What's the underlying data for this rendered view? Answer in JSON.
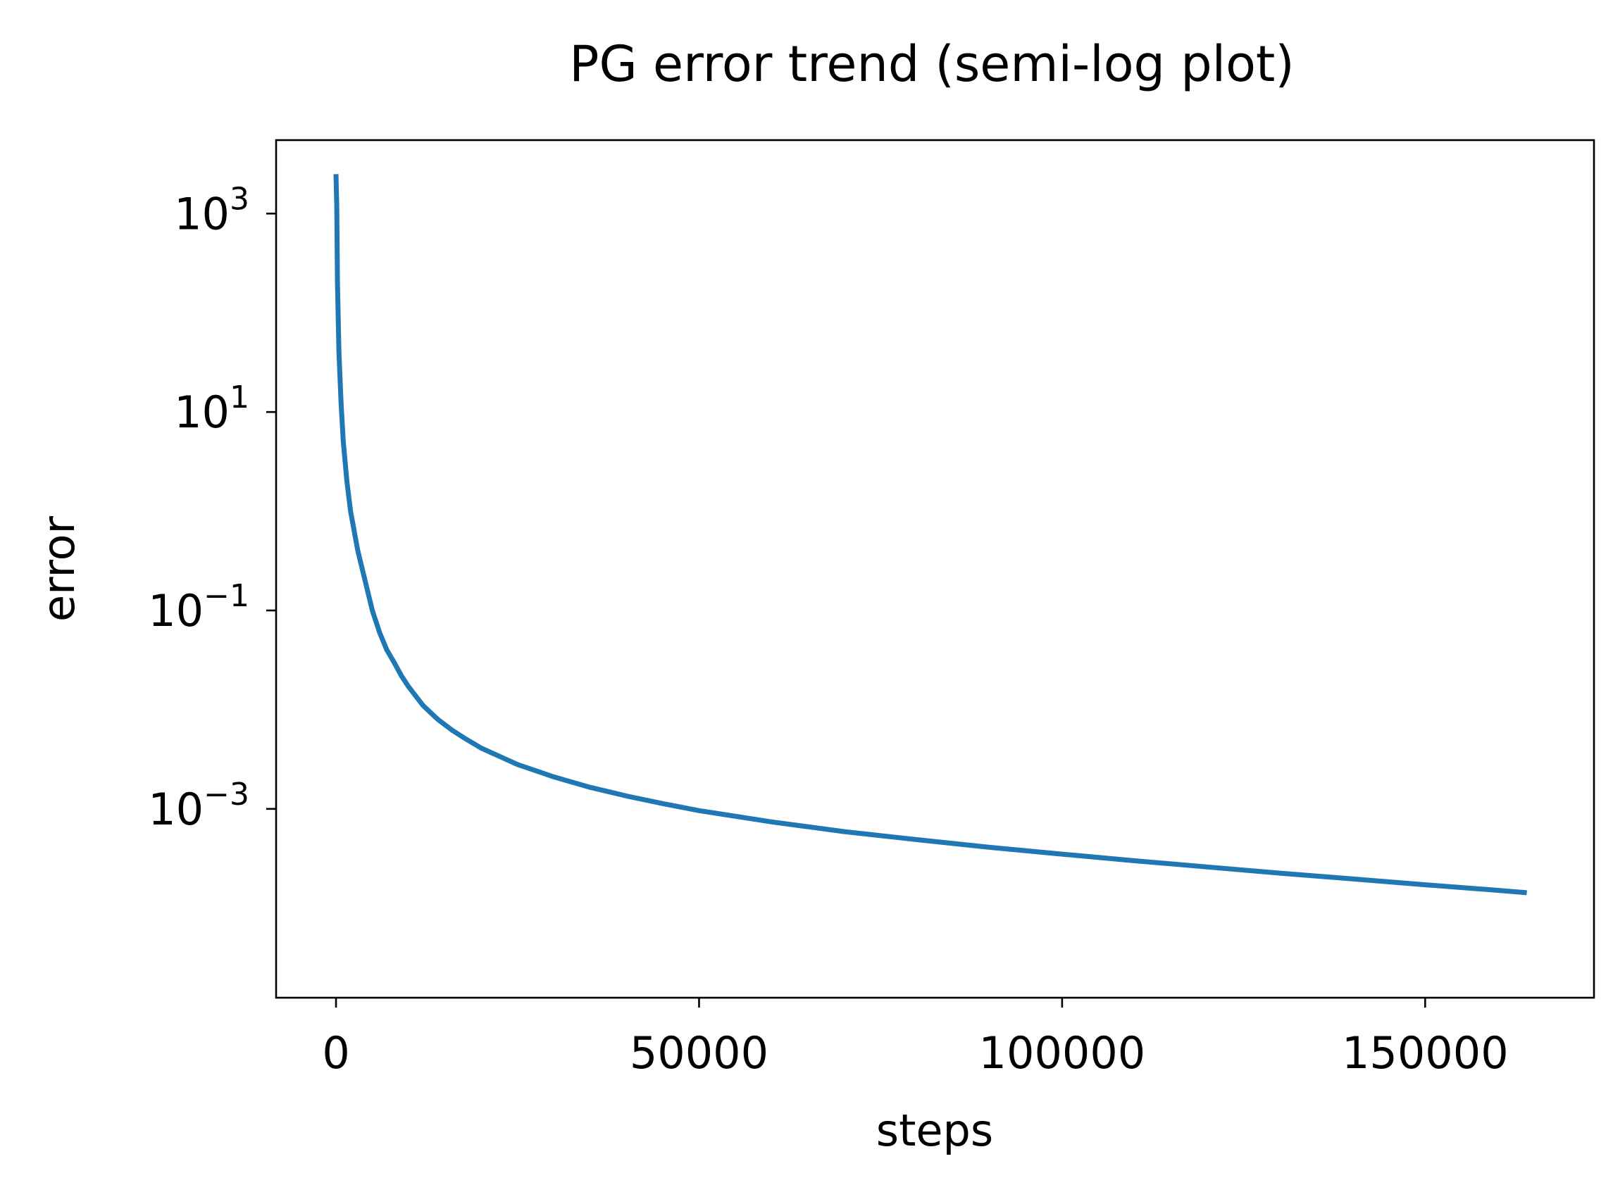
{
  "chart_data": {
    "type": "line",
    "title": "PG error trend (semi-log plot)",
    "xlabel": "steps",
    "ylabel": "error",
    "xscale": "linear",
    "yscale": "log",
    "xlim": [
      -8250,
      173250
    ],
    "ylim": [
      1.25e-05,
      5500
    ],
    "xticks": [
      {
        "value": 0,
        "label": "0"
      },
      {
        "value": 50000,
        "label": "50000"
      },
      {
        "value": 100000,
        "label": "100000"
      },
      {
        "value": 150000,
        "label": "150000"
      }
    ],
    "yticks": [
      {
        "value": 1000,
        "base": "10",
        "exp": "3"
      },
      {
        "value": 10,
        "base": "10",
        "exp": "1"
      },
      {
        "value": 0.1,
        "base": "10",
        "exp": "−1"
      },
      {
        "value": 0.001,
        "base": "10",
        "exp": "−3"
      }
    ],
    "grid": false,
    "legend": "none",
    "series": [
      {
        "color": "#1f77b4",
        "x": [
          0,
          100,
          200,
          400,
          700,
          1000,
          1500,
          2000,
          3000,
          4000,
          5000,
          6000,
          7000,
          8000,
          9000,
          10000,
          12000,
          14000,
          16000,
          18000,
          20000,
          25000,
          30000,
          35000,
          40000,
          45000,
          50000,
          60000,
          70000,
          80000,
          90000,
          100000,
          110000,
          120000,
          130000,
          140000,
          150000,
          160000,
          164000
        ],
        "y": [
          2500,
          1200,
          200,
          40,
          12,
          5,
          2,
          1,
          0.4,
          0.2,
          0.1,
          0.06,
          0.04,
          0.03,
          0.022,
          0.017,
          0.011,
          0.008,
          0.0062,
          0.005,
          0.0041,
          0.0028,
          0.0021,
          0.00165,
          0.00135,
          0.00113,
          0.00096,
          0.00074,
          0.00059,
          0.00049,
          0.00041,
          0.00035,
          0.0003,
          0.00026,
          0.000225,
          0.000197,
          0.000172,
          0.000151,
          0.000143
        ]
      }
    ]
  }
}
